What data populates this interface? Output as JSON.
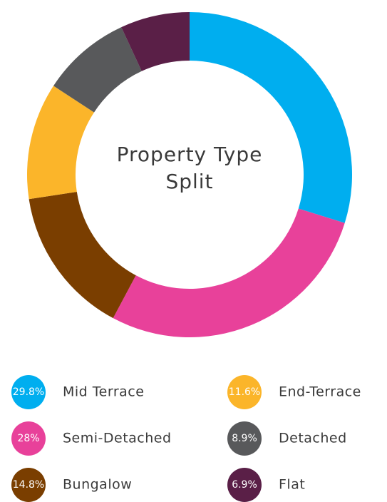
{
  "chart_data": {
    "type": "donut",
    "title": "Property Type Split",
    "categories": [
      "Mid Terrace",
      "Semi-Detached",
      "Bungalow",
      "End-Terrace",
      "Detached",
      "Flat"
    ],
    "values": [
      29.8,
      28,
      14.8,
      11.6,
      8.9,
      6.9
    ],
    "value_labels": [
      "29.8%",
      "28%",
      "14.8%",
      "11.6%",
      "8.9%",
      "6.9%"
    ],
    "colors": [
      "#00aeef",
      "#e8419a",
      "#7a3e00",
      "#fbb52a",
      "#58595b",
      "#5a1f47"
    ],
    "legend": "bottom"
  }
}
